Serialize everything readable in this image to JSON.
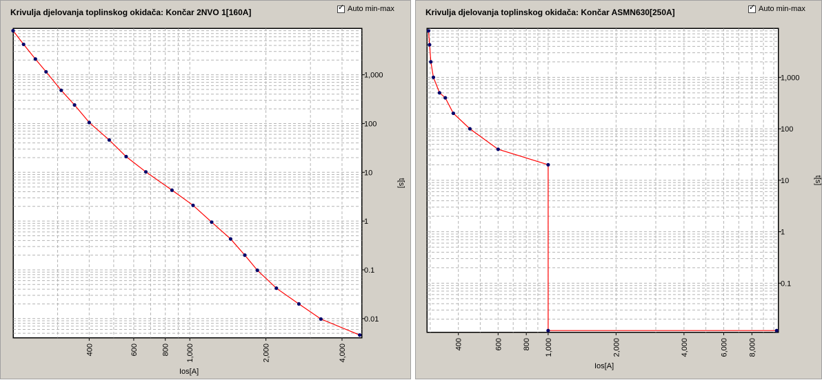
{
  "charts": [
    {
      "title": "Krivulja djelovanja toplinskog okidača: Končar 2NVO 1[160A]",
      "auto_minmax": {
        "label": "Auto min-max",
        "checked": true
      }
    },
    {
      "title": "Krivulja djelovanja toplinskog okidača: Končar ASMN630[250A]",
      "auto_minmax": {
        "label": "Auto min-max",
        "checked": true
      }
    }
  ],
  "chart_data": [
    {
      "type": "line",
      "xlabel": "Ios[A]",
      "ylabel": "t[s]",
      "x_scale": "log",
      "y_scale": "log",
      "xlim": [
        200,
        4800
      ],
      "ylim": [
        0.004,
        9000
      ],
      "x_ticks": [
        400,
        600,
        800,
        1000,
        2000,
        4000
      ],
      "x_tick_labels": [
        "400",
        "600",
        "800",
        "1,000",
        "2,000",
        "4,000"
      ],
      "y_ticks": [
        0.01,
        0.1,
        1,
        10,
        100,
        1000
      ],
      "y_tick_labels": [
        "0.01",
        "0.1",
        "1",
        "10",
        "100",
        "1,000"
      ],
      "grid": true,
      "line_color": "#ff0000",
      "marker_color": "#00006a",
      "series": [
        {
          "x": [
            200,
            220,
            245,
            270,
            310,
            350,
            400,
            480,
            560,
            670,
            850,
            1030,
            1220,
            1450,
            1650,
            1850,
            2200,
            2700,
            3300,
            4700
          ],
          "y": [
            8000,
            4200,
            2100,
            1150,
            480,
            240,
            105,
            46,
            21,
            10.2,
            4.3,
            2.1,
            0.95,
            0.43,
            0.2,
            0.098,
            0.042,
            0.02,
            0.0098,
            0.0046
          ]
        }
      ]
    },
    {
      "type": "line",
      "xlabel": "Ios[A]",
      "ylabel": "t[s]",
      "x_scale": "log",
      "y_scale": "log",
      "xlim": [
        290,
        10500
      ],
      "ylim": [
        0.011,
        9000
      ],
      "x_ticks": [
        400,
        600,
        800,
        1000,
        2000,
        4000,
        6000,
        8000
      ],
      "x_tick_labels": [
        "400",
        "600",
        "800",
        "1,000",
        "2,000",
        "4,000",
        "6,000",
        "8,000"
      ],
      "y_ticks": [
        0.1,
        1,
        10,
        100,
        1000
      ],
      "y_tick_labels": [
        "0.1",
        "1",
        "10",
        "100",
        "1,000"
      ],
      "grid": true,
      "line_color": "#ff0000",
      "marker_color": "#00006a",
      "series": [
        {
          "x": [
            295,
            298,
            302,
            310,
            330,
            350,
            380,
            450,
            600,
            1000,
            1000,
            10300
          ],
          "y": [
            8000,
            4300,
            2000,
            1000,
            500,
            400,
            200,
            100,
            40,
            20,
            0.012,
            0.012
          ]
        }
      ]
    }
  ]
}
